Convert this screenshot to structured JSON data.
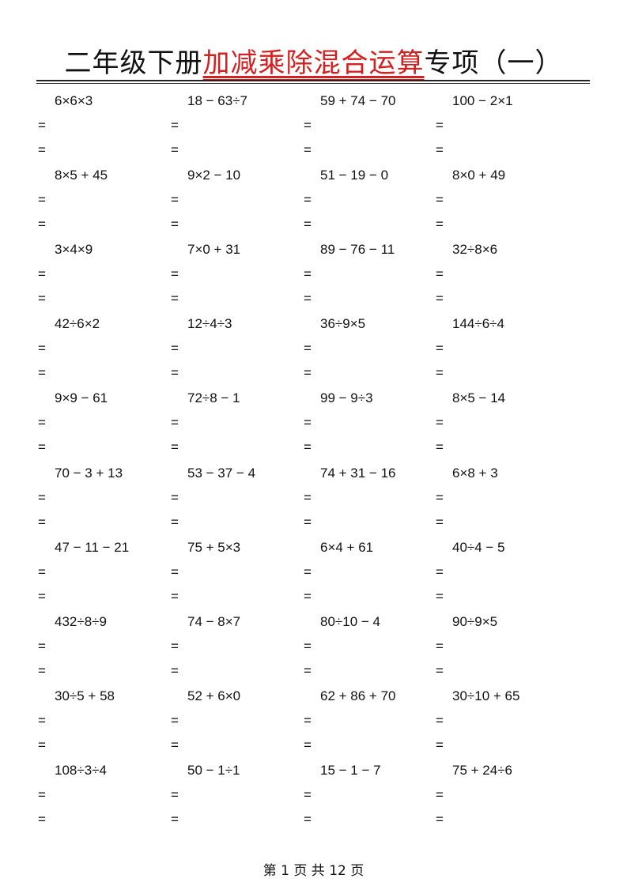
{
  "title": {
    "prefix": "二年级下册",
    "highlight": "加减乘除混合运算",
    "suffix": "专项（一）"
  },
  "equals_sign": "=",
  "problems": [
    [
      "6×6×3",
      "18 − 63÷7",
      "59 + 74 − 70",
      "100 − 2×1"
    ],
    [
      "8×5 + 45",
      "9×2 − 10",
      "51 − 19 − 0",
      "8×0 + 49"
    ],
    [
      "3×4×9",
      "7×0 + 31",
      "89 − 76 − 11",
      "32÷8×6"
    ],
    [
      "42÷6×2",
      "12÷4÷3",
      "36÷9×5",
      "144÷6÷4"
    ],
    [
      "9×9 − 61",
      "72÷8 − 1",
      "99 − 9÷3",
      "8×5 − 14"
    ],
    [
      "70 − 3 + 13",
      "53 − 37 − 4",
      "74 + 31 − 16",
      "6×8 + 3"
    ],
    [
      "47 − 11 − 21",
      "75 + 5×3",
      "6×4 + 61",
      "40÷4 − 5"
    ],
    [
      "432÷8÷9",
      "74 − 8×7",
      "80÷10 − 4",
      "90÷9×5"
    ],
    [
      "30÷5 + 58",
      "52 + 6×0",
      "62 + 86 + 70",
      "30÷10 + 65"
    ],
    [
      "108÷3÷4",
      "50 − 1÷1",
      "15 − 1 − 7",
      "75 + 24÷6"
    ]
  ],
  "footer": "第 1 页 共 12 页",
  "colors": {
    "highlight": "#d42020"
  }
}
